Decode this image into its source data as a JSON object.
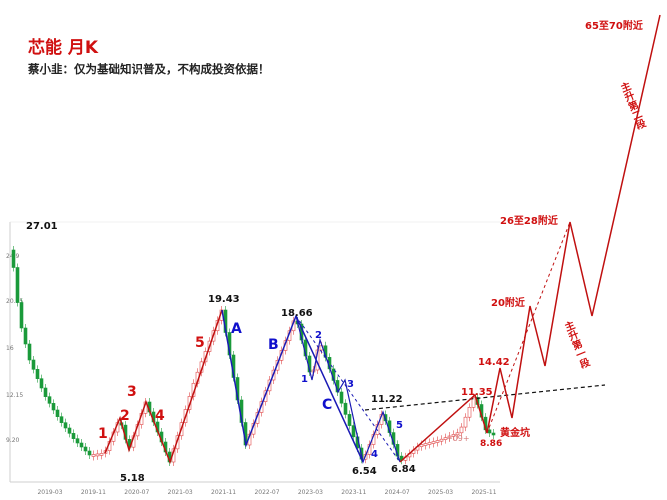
{
  "header": {
    "title": "芯能 月K",
    "subtitle": "蔡小韭：仅为基础知识普及，不构成投资依据！"
  },
  "chart_data": {
    "type": "candlestick",
    "x_ticks": [
      "2019-03",
      "2019-11",
      "2020-07",
      "2021-03",
      "2021-11",
      "2022-07",
      "2023-03",
      "2023-11",
      "2024-07",
      "2025-03",
      "2025-11"
    ],
    "y_ticks": [
      "9.20",
      "12.15",
      "16",
      "20.95",
      "24.9"
    ],
    "price_labels": [
      "27.01",
      "19.43",
      "18.66",
      "11.22",
      "6.54",
      "6.84",
      "5.18",
      "11.35",
      "14.42",
      "8.86"
    ],
    "wave_labels_red": [
      "1",
      "2",
      "3",
      "4",
      "5"
    ],
    "wave_labels_blue_abc": [
      "A",
      "B",
      "C"
    ],
    "wave_labels_blue_small": [
      "1",
      "2",
      "3",
      "4",
      "5"
    ],
    "targets": [
      "65至70附近",
      "26至28附近",
      "20附近"
    ],
    "segment_labels": [
      "主升第二段",
      "主升第一段"
    ],
    "golden_pit_label": "黄金坑",
    "upper_wick_text": "+09+"
  }
}
